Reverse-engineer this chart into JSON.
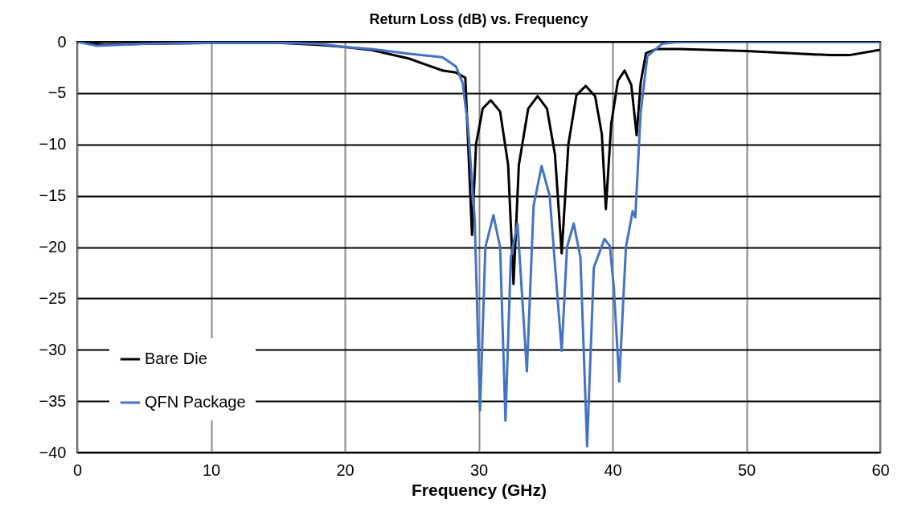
{
  "chart_data": {
    "type": "line",
    "title": "Return Loss (dB) vs. Frequency",
    "xlabel": "Frequency (GHz)",
    "xlim": [
      0,
      60
    ],
    "xticks": [
      0,
      10,
      20,
      30,
      40,
      50,
      60
    ],
    "ylim": [
      -40,
      0
    ],
    "yticks": [
      -40,
      -35,
      -30,
      -25,
      -20,
      -15,
      -10,
      -5,
      0
    ],
    "grid": true,
    "legend": "bottom left",
    "marker": "none",
    "line_style": "solid",
    "series": [
      {
        "name": "Bare Die",
        "color": "#000000",
        "x": [
          0,
          2,
          5,
          10,
          15,
          18,
          20,
          22,
          24.7,
          26,
          27.3,
          28.3,
          29,
          29.5,
          29.8,
          30.3,
          30.9,
          31.6,
          32.2,
          32.6,
          33.0,
          33.7,
          34.4,
          35.1,
          35.7,
          36.2,
          36.7,
          37.3,
          38.0,
          38.7,
          39.2,
          39.5,
          39.9,
          40.4,
          40.9,
          41.4,
          41.8,
          42.1,
          42.5,
          43.3,
          45,
          50,
          53,
          56.3,
          57.7,
          59.9,
          60
        ],
        "values": [
          0,
          -0.3,
          -0.2,
          -0.1,
          -0.1,
          -0.3,
          -0.5,
          -0.8,
          -1.6,
          -2.2,
          -2.8,
          -3.0,
          -3.5,
          -18.8,
          -10,
          -6.5,
          -5.7,
          -6.8,
          -12,
          -23.6,
          -12,
          -6.5,
          -5.3,
          -6.5,
          -11,
          -20.6,
          -10,
          -5.2,
          -4.3,
          -5.3,
          -9,
          -16.3,
          -8,
          -3.8,
          -2.8,
          -4.2,
          -9.1,
          -4,
          -1.1,
          -0.7,
          -0.7,
          -0.9,
          -1.1,
          -1.3,
          -1.3,
          -0.8,
          -0.8
        ]
      },
      {
        "name": "QFN Package",
        "color": "#4472c4",
        "x": [
          0,
          1.5,
          5,
          10,
          15,
          18,
          20,
          22,
          25,
          27.3,
          28.3,
          28.8,
          29.2,
          29.7,
          30.1,
          30.5,
          31.1,
          31.6,
          32.0,
          32.4,
          32.9,
          33.6,
          34.1,
          34.7,
          35.3,
          36.2,
          36.6,
          37.1,
          37.6,
          38.1,
          38.6,
          39.4,
          39.8,
          40.1,
          40.5,
          41.0,
          41.5,
          41.7,
          42.1,
          42.6,
          43.7,
          45,
          50,
          55,
          60
        ],
        "values": [
          0,
          -0.4,
          -0.2,
          -0.1,
          -0.1,
          -0.2,
          -0.5,
          -0.7,
          -1.2,
          -1.5,
          -2.4,
          -4,
          -8.2,
          -17.3,
          -35.9,
          -20,
          -16.9,
          -20,
          -36.9,
          -21,
          -17.7,
          -32.1,
          -16,
          -12.1,
          -15,
          -30.1,
          -20,
          -17.7,
          -21,
          -39.4,
          -22,
          -19.2,
          -19.9,
          -24,
          -33.1,
          -20,
          -16.5,
          -17.1,
          -6.9,
          -1.4,
          -0.2,
          0,
          0,
          0,
          0
        ]
      }
    ]
  }
}
